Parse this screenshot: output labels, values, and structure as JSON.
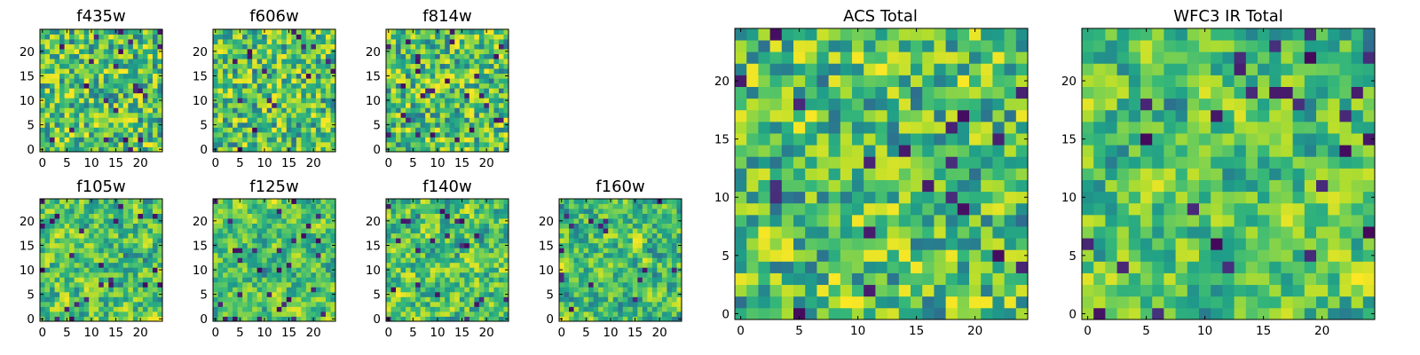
{
  "chart_data": [
    {
      "type": "heatmap",
      "title": "f435w",
      "grid": [
        25,
        25
      ],
      "xlim": [
        -0.5,
        24.5
      ],
      "ylim": [
        -0.5,
        24.5
      ],
      "xticks": [
        0,
        5,
        10,
        15,
        20
      ],
      "yticks": [
        0,
        5,
        10,
        15,
        20
      ],
      "colormap": "viridis",
      "xlabel": "",
      "ylabel": ""
    },
    {
      "type": "heatmap",
      "title": "f606w",
      "grid": [
        25,
        25
      ],
      "xlim": [
        -0.5,
        24.5
      ],
      "ylim": [
        -0.5,
        24.5
      ],
      "xticks": [
        0,
        5,
        10,
        15,
        20
      ],
      "yticks": [
        0,
        5,
        10,
        15,
        20
      ],
      "colormap": "viridis",
      "xlabel": "",
      "ylabel": ""
    },
    {
      "type": "heatmap",
      "title": "f814w",
      "grid": [
        25,
        25
      ],
      "xlim": [
        -0.5,
        24.5
      ],
      "ylim": [
        -0.5,
        24.5
      ],
      "xticks": [
        0,
        5,
        10,
        15,
        20
      ],
      "yticks": [
        0,
        5,
        10,
        15,
        20
      ],
      "colormap": "viridis",
      "xlabel": "",
      "ylabel": ""
    },
    {
      "type": "heatmap",
      "title": "f105w",
      "grid": [
        25,
        25
      ],
      "xlim": [
        -0.5,
        24.5
      ],
      "ylim": [
        -0.5,
        24.5
      ],
      "xticks": [
        0,
        5,
        10,
        15,
        20
      ],
      "yticks": [
        0,
        5,
        10,
        15,
        20
      ],
      "colormap": "viridis",
      "xlabel": "",
      "ylabel": ""
    },
    {
      "type": "heatmap",
      "title": "f125w",
      "grid": [
        25,
        25
      ],
      "xlim": [
        -0.5,
        24.5
      ],
      "ylim": [
        -0.5,
        24.5
      ],
      "xticks": [
        0,
        5,
        10,
        15,
        20
      ],
      "yticks": [
        0,
        5,
        10,
        15,
        20
      ],
      "colormap": "viridis",
      "xlabel": "",
      "ylabel": ""
    },
    {
      "type": "heatmap",
      "title": "f140w",
      "grid": [
        25,
        25
      ],
      "xlim": [
        -0.5,
        24.5
      ],
      "ylim": [
        -0.5,
        24.5
      ],
      "xticks": [
        0,
        5,
        10,
        15,
        20
      ],
      "yticks": [
        0,
        5,
        10,
        15,
        20
      ],
      "colormap": "viridis",
      "xlabel": "",
      "ylabel": ""
    },
    {
      "type": "heatmap",
      "title": "f160w",
      "grid": [
        25,
        25
      ],
      "xlim": [
        -0.5,
        24.5
      ],
      "ylim": [
        -0.5,
        24.5
      ],
      "xticks": [
        0,
        5,
        10,
        15,
        20
      ],
      "yticks": [
        0,
        5,
        10,
        15,
        20
      ],
      "colormap": "viridis",
      "xlabel": "",
      "ylabel": ""
    },
    {
      "type": "heatmap",
      "title": "ACS Total",
      "grid": [
        25,
        25
      ],
      "xlim": [
        -0.5,
        24.5
      ],
      "ylim": [
        -0.5,
        24.5
      ],
      "xticks": [
        0,
        5,
        10,
        15,
        20
      ],
      "yticks": [
        0,
        5,
        10,
        15,
        20
      ],
      "colormap": "viridis",
      "xlabel": "",
      "ylabel": ""
    },
    {
      "type": "heatmap",
      "title": "WFC3 IR Total",
      "grid": [
        25,
        25
      ],
      "xlim": [
        -0.5,
        24.5
      ],
      "ylim": [
        -0.5,
        24.5
      ],
      "xticks": [
        0,
        5,
        10,
        15,
        20
      ],
      "yticks": [
        0,
        5,
        10,
        15,
        20
      ],
      "colormap": "viridis",
      "xlabel": "",
      "ylabel": ""
    }
  ]
}
